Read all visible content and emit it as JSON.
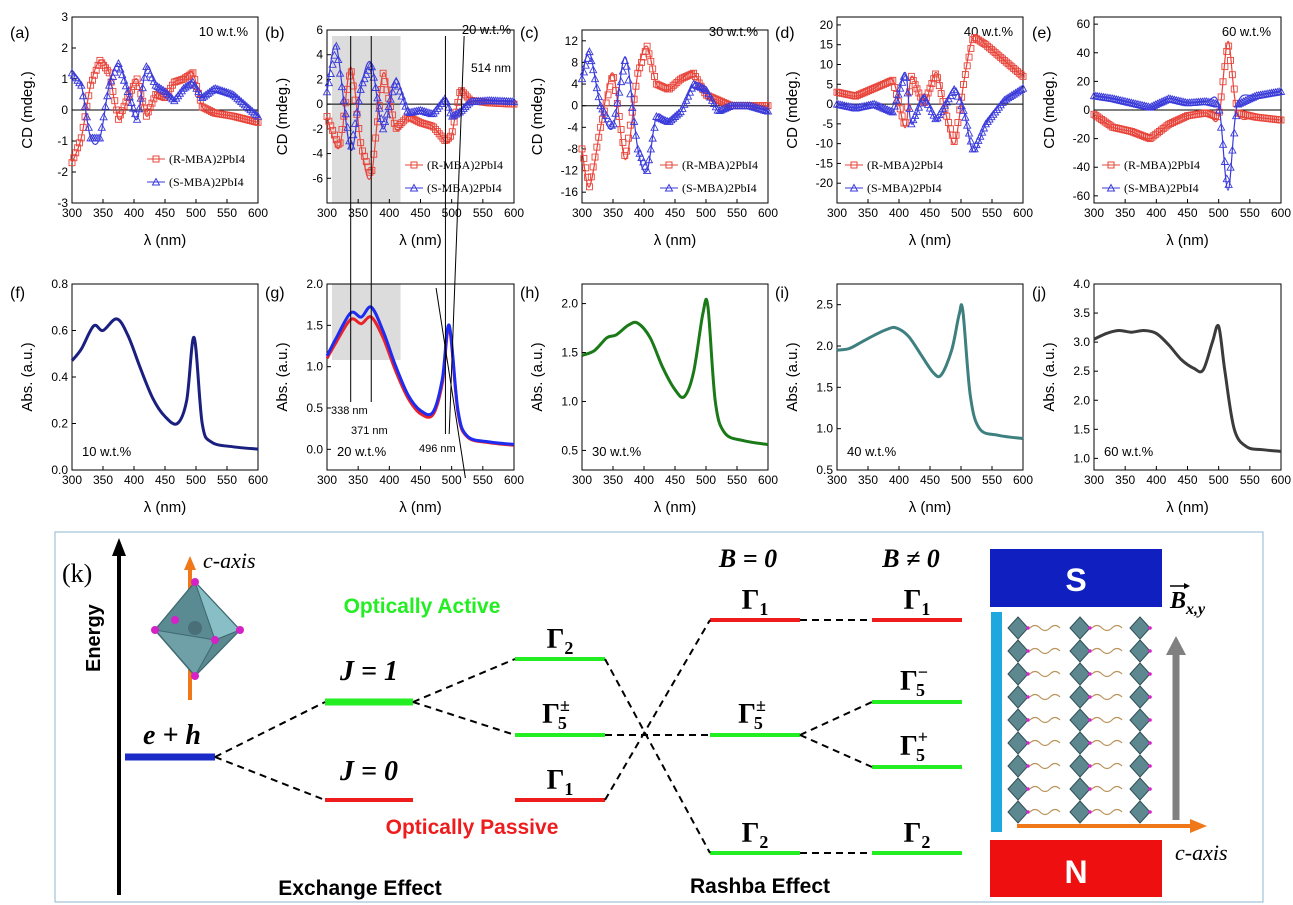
{
  "chart_data": [
    {
      "panel": "(a)",
      "type": "line",
      "annotation": "10 w.t.%",
      "xlabel": "λ (nm)",
      "ylabel": "CD (mdeg.)",
      "xlim": [
        300,
        600
      ],
      "ylim": [
        -3,
        3
      ],
      "xticks": [
        300,
        350,
        400,
        450,
        500,
        550,
        600
      ],
      "yticks": [
        -3,
        -2,
        -1,
        0,
        1,
        2,
        3
      ],
      "legend": "bottom",
      "series": [
        {
          "name": "(R-MBA)2PbI4",
          "marker": "square",
          "color": "#e8443a",
          "x": [
            300,
            315,
            330,
            345,
            360,
            375,
            390,
            405,
            420,
            435,
            450,
            465,
            480,
            495,
            510,
            530,
            560,
            600
          ],
          "y": [
            -1.7,
            -0.9,
            0.8,
            1.6,
            1.2,
            -0.3,
            0.4,
            1.0,
            -0.2,
            0.5,
            0.4,
            0.9,
            1.0,
            1.2,
            0.1,
            -0.1,
            -0.2,
            -0.4
          ]
        },
        {
          "name": "(S-MBA)2PbI4",
          "marker": "triangle",
          "color": "#3b3bdb",
          "x": [
            300,
            315,
            330,
            345,
            360,
            375,
            390,
            405,
            420,
            435,
            450,
            465,
            480,
            495,
            510,
            530,
            560,
            600
          ],
          "y": [
            1.2,
            0.8,
            -0.9,
            -0.9,
            0.8,
            1.5,
            0.6,
            -0.3,
            1.4,
            0.8,
            0.6,
            0.3,
            0.7,
            0.9,
            0.4,
            0.7,
            0.5,
            -0.2
          ]
        }
      ]
    },
    {
      "panel": "(b)",
      "type": "line",
      "annotation": "20 w.t.%",
      "annotation2": "514 nm",
      "xlabel": "λ (nm)",
      "ylabel": "CD (mdeg.)",
      "xlim": [
        300,
        600
      ],
      "ylim": [
        -8,
        6
      ],
      "xticks": [
        300,
        350,
        400,
        450,
        500,
        550,
        600
      ],
      "yticks": [
        -6,
        -4,
        -2,
        0,
        2,
        4,
        6
      ],
      "legend": "bottom-right",
      "series": [
        {
          "name": "(R-MBA)2PbI4",
          "marker": "square",
          "color": "#e8443a",
          "x": [
            300,
            320,
            338,
            355,
            371,
            390,
            410,
            430,
            450,
            470,
            490,
            500,
            514,
            530,
            560,
            600
          ],
          "y": [
            -1.0,
            -3.5,
            3.0,
            -3.5,
            -5.8,
            2.5,
            -2.0,
            -1.0,
            -1.5,
            -1.8,
            -3.0,
            -2.5,
            1.2,
            0.3,
            0.1,
            0.0
          ]
        },
        {
          "name": "(S-MBA)2PbI4",
          "marker": "triangle",
          "color": "#3b3bdb",
          "x": [
            300,
            315,
            338,
            355,
            371,
            390,
            410,
            430,
            450,
            470,
            490,
            500,
            514,
            530,
            560,
            600
          ],
          "y": [
            1.0,
            4.7,
            -3.7,
            1.5,
            3.3,
            -2.0,
            2.0,
            -0.7,
            -0.5,
            -0.8,
            0.5,
            -1.0,
            -0.6,
            0.2,
            0.3,
            0.2
          ]
        }
      ]
    },
    {
      "panel": "(c)",
      "type": "line",
      "annotation": "30 w.t.%",
      "xlabel": "λ (nm)",
      "ylabel": "CD (mdeg.)",
      "xlim": [
        300,
        600
      ],
      "ylim": [
        -18,
        14
      ],
      "xticks": [
        300,
        350,
        400,
        450,
        500,
        550,
        600
      ],
      "yticks": [
        -16,
        -12,
        -8,
        -4,
        0,
        4,
        8,
        12
      ],
      "legend": "bottom-right",
      "series": [
        {
          "name": "(R-MBA)2PbI4",
          "marker": "square",
          "color": "#e8443a",
          "x": [
            300,
            312,
            330,
            350,
            370,
            390,
            405,
            420,
            440,
            460,
            480,
            500,
            520,
            540,
            570,
            600
          ],
          "y": [
            -8,
            -15,
            -4,
            6,
            -10,
            6,
            11,
            4,
            3,
            5,
            6,
            2,
            1,
            0,
            0,
            0
          ]
        },
        {
          "name": "(S-MBA)2PbI4",
          "marker": "triangle",
          "color": "#3b3bdb",
          "x": [
            300,
            312,
            330,
            350,
            370,
            390,
            405,
            420,
            440,
            460,
            480,
            500,
            520,
            540,
            570,
            600
          ],
          "y": [
            5,
            10,
            0,
            -4,
            9,
            -8,
            -12,
            -2,
            -3,
            -1,
            4,
            3,
            -1,
            0,
            0,
            -1
          ]
        }
      ]
    },
    {
      "panel": "(d)",
      "type": "line",
      "annotation": "40 w.t.%",
      "xlabel": "λ (nm)",
      "ylabel": "CD (mdeg.)",
      "xlim": [
        300,
        600
      ],
      "ylim": [
        -25,
        22
      ],
      "xticks": [
        300,
        350,
        400,
        450,
        500,
        550,
        600
      ],
      "yticks": [
        -20,
        -15,
        -10,
        -5,
        0,
        5,
        10,
        15,
        20
      ],
      "legend": "bottom-left",
      "series": [
        {
          "name": "(R-MBA)2PbI4",
          "marker": "square",
          "color": "#e8443a",
          "x": [
            300,
            330,
            360,
            390,
            410,
            420,
            440,
            460,
            475,
            490,
            505,
            520,
            540,
            570,
            600
          ],
          "y": [
            3,
            2,
            4,
            6,
            -6,
            7,
            0,
            8,
            -2,
            -10,
            6,
            17,
            15,
            11,
            7
          ]
        },
        {
          "name": "(S-MBA)2PbI4",
          "marker": "triangle",
          "color": "#3b3bdb",
          "x": [
            300,
            330,
            360,
            390,
            410,
            420,
            440,
            460,
            475,
            490,
            505,
            520,
            540,
            570,
            600
          ],
          "y": [
            0,
            -1,
            0,
            -2,
            8,
            -5,
            2,
            -4,
            0,
            4,
            -2,
            -12,
            -5,
            1,
            4
          ]
        }
      ]
    },
    {
      "panel": "(e)",
      "type": "line",
      "annotation": "60 w.t.%",
      "xlabel": "λ (nm)",
      "ylabel": "CD (mdeg.)",
      "xlim": [
        300,
        600
      ],
      "ylim": [
        -65,
        65
      ],
      "xticks": [
        300,
        350,
        400,
        450,
        500,
        550,
        600
      ],
      "yticks": [
        -60,
        -40,
        -20,
        0,
        20,
        40,
        60
      ],
      "legend": "bottom-left",
      "series": [
        {
          "name": "(R-MBA)2PbI4",
          "marker": "square",
          "color": "#e8443a",
          "x": [
            300,
            330,
            360,
            390,
            420,
            450,
            480,
            500,
            515,
            530,
            560,
            600
          ],
          "y": [
            -3,
            -12,
            -15,
            -20,
            -10,
            -4,
            -2,
            -5,
            48,
            -2,
            -5,
            -7
          ]
        },
        {
          "name": "(S-MBA)2PbI4",
          "marker": "triangle",
          "color": "#3b3bdb",
          "x": [
            300,
            330,
            360,
            390,
            420,
            450,
            480,
            500,
            515,
            530,
            560,
            600
          ],
          "y": [
            10,
            8,
            5,
            2,
            8,
            5,
            6,
            4,
            -56,
            4,
            10,
            13
          ]
        }
      ]
    },
    {
      "panel": "(f)",
      "type": "line",
      "annotation": "10 w.t.%",
      "xlabel": "λ (nm)",
      "ylabel": "Abs. (a.u.)",
      "xlim": [
        300,
        600
      ],
      "ylim": [
        0.0,
        0.8
      ],
      "xticks": [
        300,
        350,
        400,
        450,
        500,
        550,
        600
      ],
      "yticks": [
        0.0,
        0.2,
        0.4,
        0.6,
        0.8
      ],
      "series": [
        {
          "name": "",
          "color": "#1a1f80",
          "x": [
            300,
            315,
            335,
            350,
            372,
            390,
            410,
            430,
            450,
            470,
            485,
            497,
            510,
            525,
            560,
            600
          ],
          "y": [
            0.47,
            0.52,
            0.62,
            0.6,
            0.65,
            0.58,
            0.44,
            0.31,
            0.23,
            0.2,
            0.3,
            0.57,
            0.2,
            0.12,
            0.1,
            0.09
          ]
        }
      ]
    },
    {
      "panel": "(g)",
      "type": "line",
      "annotation": "20 w.t.%",
      "xlabel": "λ (nm)",
      "ylabel": "Abs. (a.u.)",
      "xlim": [
        300,
        600
      ],
      "ylim": [
        -0.25,
        2.0
      ],
      "xticks": [
        300,
        350,
        400,
        450,
        500,
        550,
        600
      ],
      "yticks": [
        0.0,
        0.5,
        1.0,
        1.5,
        2.0
      ],
      "callouts": [
        "338 nm",
        "371 nm",
        "496 nm"
      ],
      "series": [
        {
          "name": "",
          "color": "#e8232a",
          "x": [
            300,
            315,
            338,
            355,
            371,
            390,
            410,
            430,
            450,
            470,
            485,
            496,
            510,
            525,
            560,
            600
          ],
          "y": [
            1.1,
            1.3,
            1.57,
            1.52,
            1.6,
            1.35,
            0.95,
            0.62,
            0.43,
            0.42,
            0.8,
            1.47,
            0.45,
            0.15,
            0.08,
            0.05
          ]
        },
        {
          "name": "",
          "color": "#1d2cf0",
          "x": [
            300,
            315,
            338,
            355,
            371,
            390,
            410,
            430,
            450,
            470,
            485,
            496,
            510,
            525,
            560,
            600
          ],
          "y": [
            1.13,
            1.35,
            1.65,
            1.6,
            1.72,
            1.43,
            1.01,
            0.66,
            0.47,
            0.45,
            0.85,
            1.5,
            0.48,
            0.16,
            0.09,
            0.06
          ]
        }
      ]
    },
    {
      "panel": "(h)",
      "type": "line",
      "annotation": "30 w.t.%",
      "xlabel": "λ (nm)",
      "ylabel": "Abs. (a.u.)",
      "xlim": [
        300,
        600
      ],
      "ylim": [
        0.3,
        2.2
      ],
      "xticks": [
        300,
        350,
        400,
        450,
        500,
        550,
        600
      ],
      "yticks": [
        0.5,
        1.0,
        1.5,
        2.0
      ],
      "series": [
        {
          "name": "",
          "color": "#1a7a18",
          "x": [
            300,
            320,
            340,
            355,
            375,
            390,
            410,
            430,
            450,
            465,
            480,
            495,
            503,
            515,
            530,
            560,
            600
          ],
          "y": [
            1.47,
            1.52,
            1.65,
            1.68,
            1.78,
            1.8,
            1.65,
            1.35,
            1.12,
            1.05,
            1.3,
            1.9,
            1.97,
            1.0,
            0.68,
            0.6,
            0.56
          ]
        }
      ]
    },
    {
      "panel": "(i)",
      "type": "line",
      "annotation": "40 w.t.%",
      "xlabel": "λ (nm)",
      "ylabel": "Abs. (a.u.)",
      "xlim": [
        300,
        600
      ],
      "ylim": [
        0.5,
        2.75
      ],
      "xticks": [
        300,
        350,
        400,
        450,
        500,
        550,
        600
      ],
      "yticks": [
        0.5,
        1.0,
        1.5,
        2.0,
        2.5
      ],
      "series": [
        {
          "name": "",
          "color": "#3e7f7f",
          "x": [
            300,
            320,
            340,
            360,
            380,
            395,
            415,
            435,
            455,
            468,
            485,
            497,
            503,
            515,
            530,
            560,
            600
          ],
          "y": [
            1.95,
            1.97,
            2.05,
            2.13,
            2.2,
            2.22,
            2.12,
            1.9,
            1.68,
            1.65,
            1.95,
            2.38,
            2.42,
            1.4,
            1.0,
            0.92,
            0.88
          ]
        }
      ]
    },
    {
      "panel": "(j)",
      "type": "line",
      "annotation": "60 w.t.%",
      "xlabel": "λ (nm)",
      "ylabel": "Abs. (a.u.)",
      "xlim": [
        300,
        600
      ],
      "ylim": [
        0.8,
        4.0
      ],
      "xticks": [
        300,
        350,
        400,
        450,
        500,
        550,
        600
      ],
      "yticks": [
        1.0,
        1.5,
        2.0,
        2.5,
        3.0,
        3.5,
        4.0
      ],
      "series": [
        {
          "name": "",
          "color": "#3b3b3b",
          "x": [
            300,
            320,
            340,
            360,
            380,
            400,
            420,
            440,
            460,
            475,
            490,
            500,
            510,
            525,
            545,
            570,
            600
          ],
          "y": [
            3.05,
            3.15,
            3.2,
            3.17,
            3.2,
            3.15,
            2.95,
            2.7,
            2.55,
            2.52,
            3.0,
            3.27,
            2.5,
            1.5,
            1.2,
            1.15,
            1.12
          ]
        }
      ]
    }
  ],
  "diagram": {
    "panel_label": "(k)",
    "energy_label": "Energy",
    "c_axis_label": "c-axis",
    "optically_active": "Optically Active",
    "optically_passive": "Optically Passive",
    "exchange_effect": "Exchange Effect",
    "rashba_effect": "Rashba Effect",
    "level_e_h": "e + h",
    "level_j1": "J = 1",
    "level_j0": "J = 0",
    "gamma_2": "Γ",
    "b_zero": "B = 0",
    "b_nonzero": "B ≠ 0",
    "magnet_s": "S",
    "magnet_n": "N",
    "b_field_label": "B",
    "b_field_sub": "x,y",
    "c_axis_bottom": "c-axis"
  }
}
